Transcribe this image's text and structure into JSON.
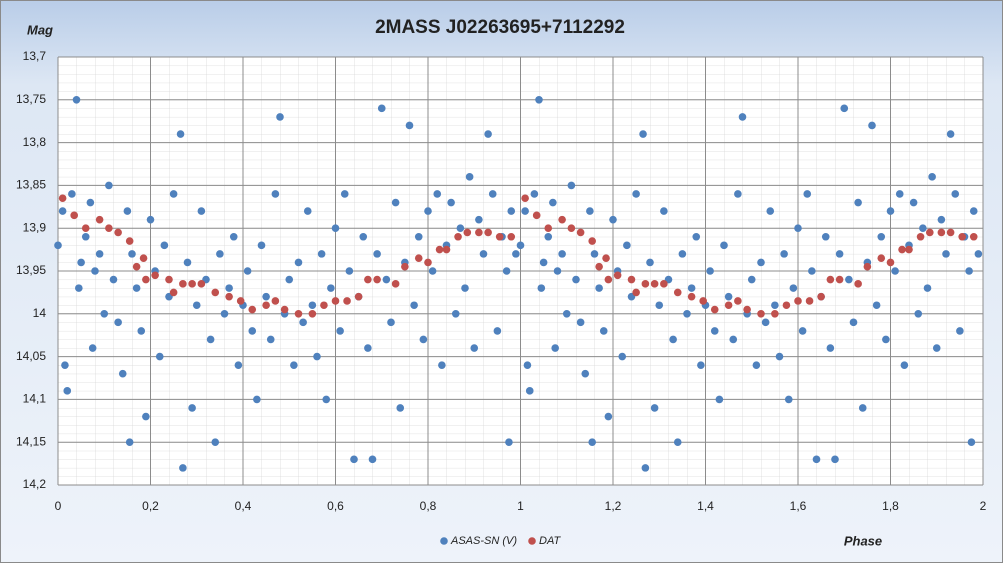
{
  "chart_data": {
    "type": "scatter",
    "title": "2MASS J02263695+7112292",
    "x_label": "Phase",
    "y_label": "Mag",
    "xlim": [
      0,
      2
    ],
    "ylim": [
      13.7,
      14.2
    ],
    "y_reversed": true,
    "grid": true,
    "legend": "bottom",
    "xticks": [
      0,
      {
        "value": 0.2,
        "label": "0,2"
      },
      {
        "value": 0.4,
        "label": "0,4"
      },
      {
        "value": 0.6,
        "label": "0,6"
      },
      {
        "value": 0.8,
        "label": "0,8"
      },
      1,
      {
        "value": 1.2,
        "label": "1,2"
      },
      {
        "value": 1.4,
        "label": "1,4"
      },
      {
        "value": 1.6,
        "label": "1,6"
      },
      {
        "value": 1.8,
        "label": "1,8"
      },
      2
    ],
    "yticks": [
      {
        "value": 13.7,
        "label": "13,7"
      },
      {
        "value": 13.75,
        "label": "13,75"
      },
      {
        "value": 13.8,
        "label": "13,8"
      },
      {
        "value": 13.85,
        "label": "13,85"
      },
      {
        "value": 13.9,
        "label": "13,9"
      },
      {
        "value": 13.95,
        "label": "13,95"
      },
      14,
      {
        "value": 14.05,
        "label": "14,05"
      },
      {
        "value": 14.1,
        "label": "14,1"
      },
      {
        "value": 14.15,
        "label": "14,15"
      },
      {
        "value": 14.2,
        "label": "14,2"
      }
    ],
    "series": [
      {
        "name": "ASAS-SN (V)",
        "color": "#4f81bd",
        "x": [
          0,
          0.01,
          0.015,
          0.02,
          0.03,
          0.04,
          0.045,
          0.05,
          0.06,
          0.07,
          0.075,
          0.08,
          0.09,
          0.1,
          0.11,
          0.12,
          0.13,
          0.14,
          0.15,
          0.155,
          0.16,
          0.17,
          0.18,
          0.19,
          0.2,
          0.21,
          0.22,
          0.23,
          0.24,
          0.25,
          0.265,
          0.27,
          0.28,
          0.29,
          0.3,
          0.31,
          0.32,
          0.33,
          0.34,
          0.35,
          0.36,
          0.37,
          0.38,
          0.39,
          0.4,
          0.41,
          0.42,
          0.43,
          0.44,
          0.45,
          0.46,
          0.47,
          0.48,
          0.49,
          0.5,
          0.51,
          0.52,
          0.53,
          0.54,
          0.55,
          0.56,
          0.57,
          0.58,
          0.59,
          0.6,
          0.61,
          0.62,
          0.63,
          0.64,
          0.65,
          0.66,
          0.67,
          0.68,
          0.69,
          0.7,
          0.71,
          0.72,
          0.73,
          0.74,
          0.75,
          0.76,
          0.77,
          0.78,
          0.79,
          0.8,
          0.81,
          0.82,
          0.83,
          0.84,
          0.85,
          0.86,
          0.87,
          0.88,
          0.89,
          0.9,
          0.91,
          0.92,
          0.93,
          0.94,
          0.95,
          0.96,
          0.97,
          0.975,
          0.98,
          0.99,
          1,
          1.01,
          1.015,
          1.02,
          1.03,
          1.04,
          1.045,
          1.05,
          1.06,
          1.07,
          1.075,
          1.08,
          1.09,
          1.1,
          1.11,
          1.12,
          1.13,
          1.14,
          1.15,
          1.155,
          1.16,
          1.17,
          1.18,
          1.19,
          1.2,
          1.21,
          1.22,
          1.23,
          1.24,
          1.25,
          1.265,
          1.27,
          1.28,
          1.29,
          1.3,
          1.31,
          1.32,
          1.33,
          1.34,
          1.35,
          1.36,
          1.37,
          1.38,
          1.39,
          1.4,
          1.41,
          1.42,
          1.43,
          1.44,
          1.45,
          1.46,
          1.47,
          1.48,
          1.49,
          1.5,
          1.51,
          1.52,
          1.53,
          1.54,
          1.55,
          1.56,
          1.57,
          1.58,
          1.59,
          1.6,
          1.61,
          1.62,
          1.63,
          1.64,
          1.65,
          1.66,
          1.67,
          1.68,
          1.69,
          1.7,
          1.71,
          1.72,
          1.73,
          1.74,
          1.75,
          1.76,
          1.77,
          1.78,
          1.79,
          1.8,
          1.81,
          1.82,
          1.83,
          1.84,
          1.85,
          1.86,
          1.87,
          1.88,
          1.89,
          1.9,
          1.91,
          1.92,
          1.93,
          1.94,
          1.95,
          1.96,
          1.97,
          1.975,
          1.98,
          1.99
        ],
        "values": [
          13.92,
          13.88,
          14.06,
          14.09,
          13.86,
          13.75,
          13.97,
          13.94,
          13.91,
          13.87,
          14.04,
          13.95,
          13.93,
          14,
          13.85,
          13.96,
          14.01,
          14.07,
          13.88,
          14.15,
          13.93,
          13.97,
          14.02,
          14.12,
          13.89,
          13.95,
          14.05,
          13.92,
          13.98,
          13.86,
          13.79,
          14.18,
          13.94,
          14.11,
          13.99,
          13.88,
          13.96,
          14.03,
          14.15,
          13.93,
          14,
          13.97,
          13.91,
          14.06,
          13.99,
          13.95,
          14.02,
          14.1,
          13.92,
          13.98,
          14.03,
          13.86,
          13.77,
          14,
          13.96,
          14.06,
          13.94,
          14.01,
          13.88,
          13.99,
          14.05,
          13.93,
          14.1,
          13.97,
          13.9,
          14.02,
          13.86,
          13.95,
          14.17,
          13.98,
          13.91,
          14.04,
          14.17,
          13.93,
          13.76,
          13.96,
          14.01,
          13.87,
          14.11,
          13.94,
          13.78,
          13.99,
          13.91,
          14.03,
          13.88,
          13.95,
          13.86,
          14.06,
          13.92,
          13.87,
          14,
          13.9,
          13.97,
          13.84,
          14.04,
          13.89,
          13.93,
          13.79,
          13.86,
          14.02,
          13.91,
          13.95,
          14.15,
          13.88,
          13.93,
          13.92,
          13.88,
          14.06,
          14.09,
          13.86,
          13.75,
          13.97,
          13.94,
          13.91,
          13.87,
          14.04,
          13.95,
          13.93,
          14,
          13.85,
          13.96,
          14.01,
          14.07,
          13.88,
          14.15,
          13.93,
          13.97,
          14.02,
          14.12,
          13.89,
          13.95,
          14.05,
          13.92,
          13.98,
          13.86,
          13.79,
          14.18,
          13.94,
          14.11,
          13.99,
          13.88,
          13.96,
          14.03,
          14.15,
          13.93,
          14,
          13.97,
          13.91,
          14.06,
          13.99,
          13.95,
          14.02,
          14.1,
          13.92,
          13.98,
          14.03,
          13.86,
          13.77,
          14,
          13.96,
          14.06,
          13.94,
          14.01,
          13.88,
          13.99,
          14.05,
          13.93,
          14.1,
          13.97,
          13.9,
          14.02,
          13.86,
          13.95,
          14.17,
          13.98,
          13.91,
          14.04,
          14.17,
          13.93,
          13.76,
          13.96,
          14.01,
          13.87,
          14.11,
          13.94,
          13.78,
          13.99,
          13.91,
          14.03,
          13.88,
          13.95,
          13.86,
          14.06,
          13.92,
          13.87,
          14,
          13.9,
          13.97,
          13.84,
          14.04,
          13.89,
          13.93,
          13.79,
          13.86,
          14.02,
          13.91,
          13.95,
          14.15,
          13.88,
          13.93
        ]
      },
      {
        "name": "DAT",
        "color": "#c0504d",
        "x": [
          0.01,
          0.035,
          0.06,
          0.09,
          0.11,
          0.13,
          0.155,
          0.17,
          0.185,
          0.19,
          0.21,
          0.24,
          0.25,
          0.27,
          0.29,
          0.31,
          0.34,
          0.37,
          0.395,
          0.42,
          0.45,
          0.47,
          0.49,
          0.52,
          0.55,
          0.575,
          0.6,
          0.625,
          0.65,
          0.67,
          0.69,
          0.73,
          0.75,
          0.78,
          0.8,
          0.825,
          0.84,
          0.865,
          0.885,
          0.91,
          0.93,
          0.955,
          0.98,
          1.01,
          1.035,
          1.06,
          1.09,
          1.11,
          1.13,
          1.155,
          1.17,
          1.185,
          1.19,
          1.21,
          1.24,
          1.25,
          1.27,
          1.29,
          1.31,
          1.34,
          1.37,
          1.395,
          1.42,
          1.45,
          1.47,
          1.49,
          1.52,
          1.55,
          1.575,
          1.6,
          1.625,
          1.65,
          1.67,
          1.69,
          1.73,
          1.75,
          1.78,
          1.8,
          1.825,
          1.84,
          1.865,
          1.885,
          1.91,
          1.93,
          1.955,
          1.98
        ],
        "values": [
          13.865,
          13.885,
          13.9,
          13.89,
          13.9,
          13.905,
          13.915,
          13.945,
          13.935,
          13.96,
          13.955,
          13.96,
          13.975,
          13.965,
          13.965,
          13.965,
          13.975,
          13.98,
          13.985,
          13.995,
          13.99,
          13.985,
          13.995,
          14,
          14,
          13.99,
          13.985,
          13.985,
          13.98,
          13.96,
          13.96,
          13.965,
          13.945,
          13.935,
          13.94,
          13.925,
          13.925,
          13.91,
          13.905,
          13.905,
          13.905,
          13.91,
          13.91,
          13.865,
          13.885,
          13.9,
          13.89,
          13.9,
          13.905,
          13.915,
          13.945,
          13.935,
          13.96,
          13.955,
          13.96,
          13.975,
          13.965,
          13.965,
          13.965,
          13.975,
          13.98,
          13.985,
          13.995,
          13.99,
          13.985,
          13.995,
          14,
          14,
          13.99,
          13.985,
          13.985,
          13.98,
          13.96,
          13.96,
          13.965,
          13.945,
          13.935,
          13.94,
          13.925,
          13.925,
          13.91,
          13.905,
          13.905,
          13.905,
          13.91,
          13.91
        ]
      }
    ]
  }
}
